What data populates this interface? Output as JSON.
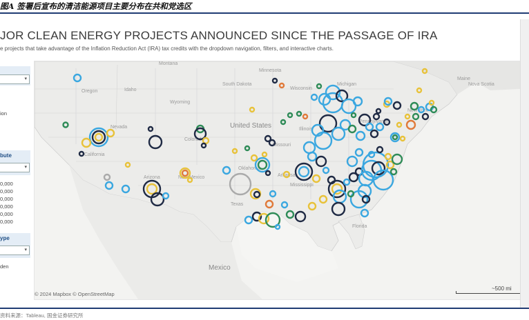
{
  "caption": "图A 签署后宣布的清洁能源项目主要分布在共和党选区",
  "title": "JOR CLEAN ENERGY PROJECTS ANNOUNCED SINCE THE PASSAGE OF IRA",
  "subtitle": "e projects that take advantage of the Inflation Reduction Act (IRA) tax credits with the dropdown navigation, filters, and interactive charts.",
  "sidebar": {
    "top_select_caret": "▾",
    "partial_text_1": "ion",
    "section_2_label": "bute",
    "section_2_caret": "▾",
    "values": [
      "0,000",
      "0,000",
      "0,000",
      "0,000",
      "0,000",
      "0,000"
    ],
    "section_3_label": "ype",
    "section_3_caret": "▾",
    "partial_text_2": "den"
  },
  "map": {
    "labels": {
      "montana": "Montana",
      "oregon": "Oregon",
      "idaho": "Idaho",
      "wyoming": "Wyoming",
      "south_dakota": "South Dakota",
      "minnesota": "Minnesota",
      "wisconsin": "Wisconsin",
      "michigan": "Michigan",
      "nevada": "Nevada",
      "california": "California",
      "colorado": "Colorado",
      "united_states": "United States",
      "illinois": "Illinois",
      "missouri": "Missouri",
      "arizona": "Arizona",
      "new_mexico": "New Mexico",
      "oklahoma": "Oklahoma",
      "arkansas": "Arkansas",
      "mississippi": "Mississippi",
      "texas": "Texas",
      "florida": "Florida",
      "mexico": "Mexico",
      "maine": "Maine",
      "nova_scotia": "Nova Scotia",
      "new_york": "New York",
      "pennsylvania": "Pennsylvania"
    },
    "attribution": "© 2024 Mapbox  © OpenStreetMap",
    "scale": "~500 mi"
  },
  "source": "资料来源：Tableau, 国金证券研究所"
}
